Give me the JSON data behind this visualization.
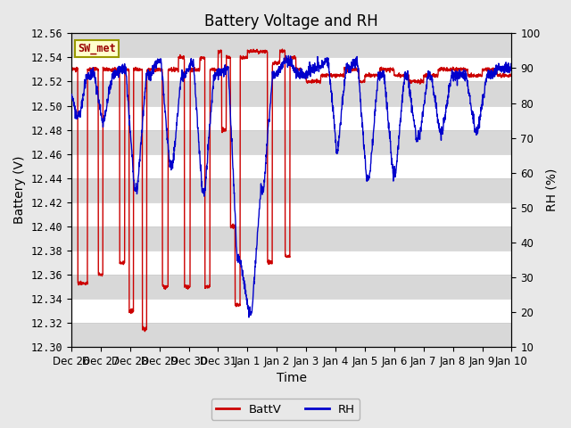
{
  "title": "Battery Voltage and RH",
  "xlabel": "Time",
  "ylabel_left": "Battery (V)",
  "ylabel_right": "RH (%)",
  "station_label": "SW_met",
  "ylim_left": [
    12.3,
    12.56
  ],
  "ylim_right": [
    10,
    100
  ],
  "yticks_left": [
    12.3,
    12.32,
    12.34,
    12.36,
    12.38,
    12.4,
    12.42,
    12.44,
    12.46,
    12.48,
    12.5,
    12.52,
    12.54,
    12.56
  ],
  "yticks_right": [
    10,
    20,
    30,
    40,
    50,
    60,
    70,
    80,
    90,
    100
  ],
  "xtick_labels": [
    "Dec 26",
    "Dec 27",
    "Dec 28",
    "Dec 29",
    "Dec 30",
    "Dec 31",
    "Jan 1",
    "Jan 2",
    "Jan 3",
    "Jan 4",
    "Jan 5",
    "Jan 6",
    "Jan 7",
    "Jan 8",
    "Jan 9",
    "Jan 10"
  ],
  "color_battv": "#cc0000",
  "color_rh": "#0000cc",
  "legend_battv": "BattV",
  "legend_rh": "RH",
  "background_color": "#e8e8e8",
  "plot_bg_color": "#ffffff",
  "stripe_color": "#d8d8d8",
  "title_fontsize": 12,
  "axis_label_fontsize": 10,
  "tick_fontsize": 8.5
}
